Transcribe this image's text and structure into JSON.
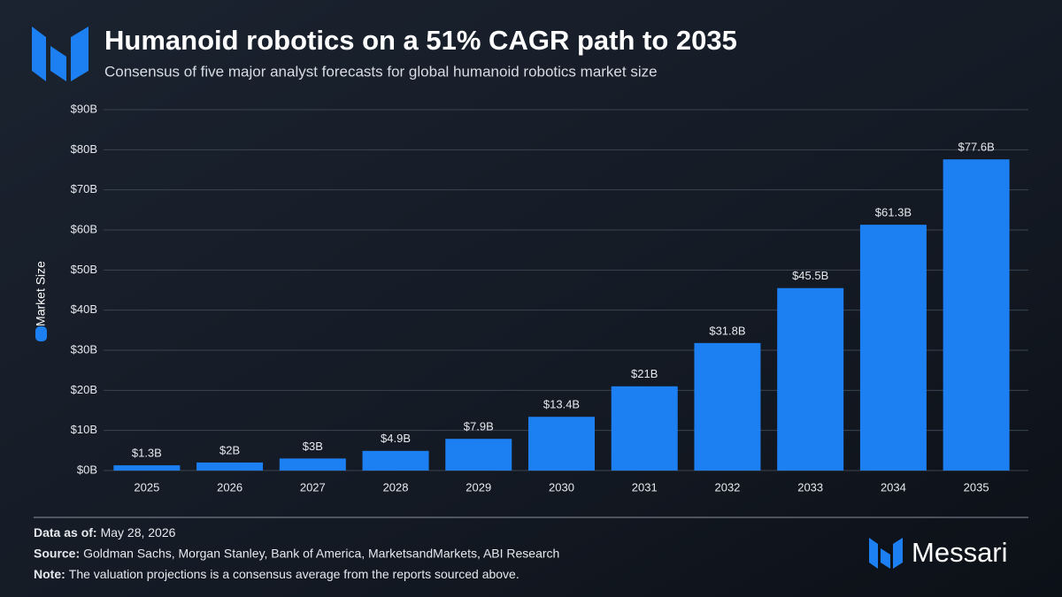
{
  "chart_data": {
    "type": "bar",
    "title": "Humanoid robotics on a 51% CAGR path to 2035",
    "subtitle": "Consensus of five major analyst forecasts for global humanoid robotics market size",
    "categories": [
      "2025",
      "2026",
      "2027",
      "2028",
      "2029",
      "2030",
      "2031",
      "2032",
      "2033",
      "2034",
      "2035"
    ],
    "series": [
      {
        "name": "Market Size",
        "color": "#1d80f2",
        "values": [
          1.3,
          2,
          3,
          4.9,
          7.9,
          13.4,
          21,
          31.8,
          45.5,
          61.3,
          77.6
        ],
        "value_labels": [
          "$1.3B",
          "$2B",
          "$3B",
          "$4.9B",
          "$7.9B",
          "$13.4B",
          "$21B",
          "$31.8B",
          "$45.5B",
          "$61.3B",
          "$77.6B"
        ]
      }
    ],
    "ylim": [
      0,
      90
    ],
    "yticks": [
      {
        "value": 0,
        "label": "$0B"
      },
      {
        "value": 10,
        "label": "$10B"
      },
      {
        "value": 20,
        "label": "$20B"
      },
      {
        "value": 30,
        "label": "$30B"
      },
      {
        "value": 40,
        "label": "$40B"
      },
      {
        "value": 50,
        "label": "$50B"
      },
      {
        "value": 60,
        "label": "$60B"
      },
      {
        "value": 70,
        "label": "$70B"
      },
      {
        "value": 80,
        "label": "$80B"
      },
      {
        "value": 90,
        "label": "$90B"
      }
    ],
    "grid": true
  },
  "footer": {
    "items": [
      {
        "label": "Data as of:",
        "text": "May 28, 2026"
      },
      {
        "label": "Source:",
        "text": "Goldman Sachs, Morgan Stanley, Bank of America, MarketsandMarkets, ABI Research"
      },
      {
        "label": "Note:",
        "text": "The valuation projections is a consensus average from the reports sourced above."
      }
    ],
    "brand": "Messari"
  }
}
